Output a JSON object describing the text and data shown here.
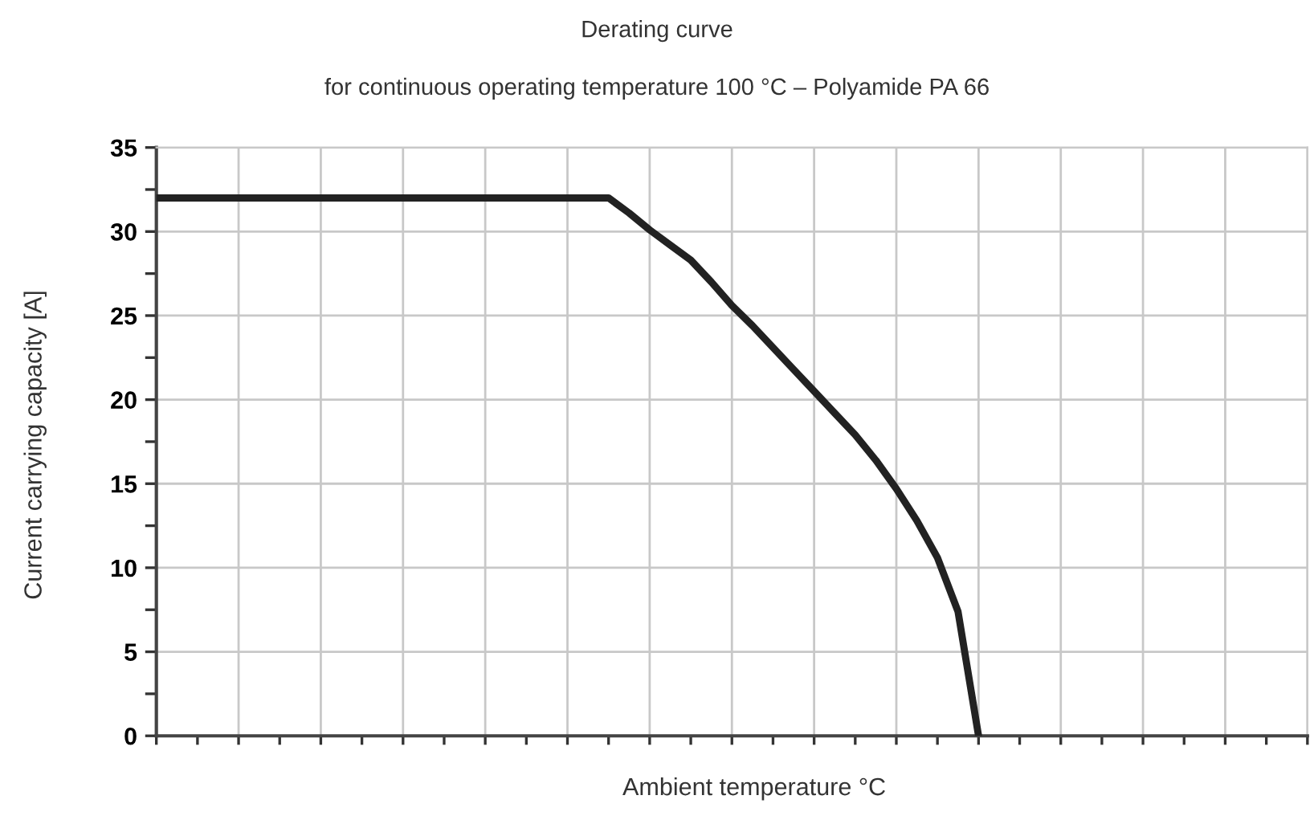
{
  "chart_data": {
    "type": "line",
    "title": "Derating curve",
    "subtitle": "for continuous operating temperature 100 °C – Polyamide PA 66",
    "xlabel": "Ambient temperature °C",
    "ylabel": "Current carrying capacity [A]",
    "categories": [
      null,
      null,
      null,
      null,
      null,
      null,
      null,
      null,
      null,
      null,
      null,
      null,
      null,
      null,
      null,
      null,
      null,
      null,
      null,
      null,
      null,
      null,
      null,
      null,
      null,
      null,
      null,
      null,
      null,
      null,
      null,
      null,
      null,
      null,
      null,
      null,
      null,
      null,
      null,
      null,
      null,
      null,
      null,
      null,
      null,
      null,
      null,
      null,
      null,
      null,
      null,
      null,
      null,
      null,
      null,
      null,
      null
    ],
    "series": [
      {
        "color": "#222222",
        "values": [
          32,
          32,
          32,
          32,
          32,
          32,
          32,
          32,
          32,
          32,
          32,
          32,
          32,
          32,
          32,
          32,
          32,
          32,
          32,
          32,
          32,
          32,
          32,
          31.1,
          30.1,
          29.2,
          28.3,
          27.0,
          25.6,
          24.4,
          23.1,
          21.8,
          20.5,
          19.2,
          17.9,
          16.4,
          14.7,
          12.8,
          10.6,
          7.4,
          0,
          null,
          null,
          null,
          null,
          null,
          null,
          null,
          null,
          null,
          null,
          null,
          null,
          null,
          null,
          null,
          null
        ]
      }
    ],
    "ylim": [
      0,
      35
    ],
    "yticks": [
      0,
      {
        "value": 2.5,
        "label": null
      },
      5,
      {
        "value": 7.5,
        "label": null
      },
      10,
      {
        "value": 12.5,
        "label": null
      },
      15,
      {
        "value": 17.5,
        "label": null
      },
      20,
      {
        "value": 22.5,
        "label": null
      },
      25,
      {
        "value": 27.5,
        "label": null
      },
      30,
      {
        "value": 32.5,
        "label": null
      },
      35
    ],
    "grid": true,
    "marker": "none",
    "line_style": "solid"
  }
}
